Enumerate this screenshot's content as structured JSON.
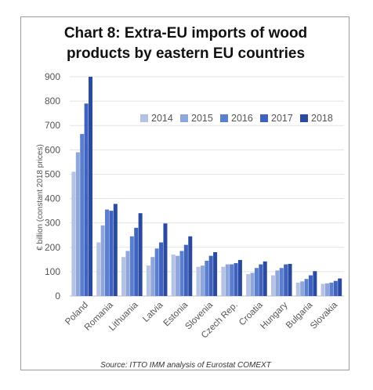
{
  "chart_data": {
    "type": "bar",
    "title_lines": [
      "Chart 8: Extra-EU imports of wood",
      "products by eastern EU countries"
    ],
    "ylabel": "€ billion (constant 2018 prices)",
    "xlabel": "",
    "ylim": [
      0,
      900
    ],
    "yticks": [
      0,
      100,
      200,
      300,
      400,
      500,
      600,
      700,
      800,
      900
    ],
    "grid": true,
    "legend_position": "top-right",
    "categories": [
      "Poland",
      "Romania",
      "Lithuania",
      "Latvia",
      "Estonia",
      "Slovenia",
      "Czech Rep.",
      "Croatia",
      "Hungary",
      "Bulgaria",
      "Slovakia"
    ],
    "series": [
      {
        "name": "2014",
        "color": "#b4c3e3",
        "values": [
          510,
          220,
          160,
          125,
          170,
          120,
          120,
          90,
          85,
          55,
          50
        ]
      },
      {
        "name": "2015",
        "color": "#8fa6db",
        "values": [
          590,
          290,
          185,
          160,
          165,
          125,
          130,
          95,
          105,
          60,
          52
        ]
      },
      {
        "name": "2016",
        "color": "#5a7fd0",
        "values": [
          665,
          355,
          245,
          195,
          185,
          145,
          130,
          115,
          115,
          70,
          55
        ]
      },
      {
        "name": "2017",
        "color": "#3f62bf",
        "values": [
          790,
          350,
          280,
          220,
          210,
          165,
          135,
          130,
          130,
          85,
          62
        ]
      },
      {
        "name": "2018",
        "color": "#2a4a9f",
        "values": [
          905,
          378,
          340,
          298,
          245,
          180,
          148,
          142,
          132,
          102,
          72
        ]
      }
    ],
    "source": "Source: ITTO IMM analysis of Eurostat COMEXT"
  }
}
